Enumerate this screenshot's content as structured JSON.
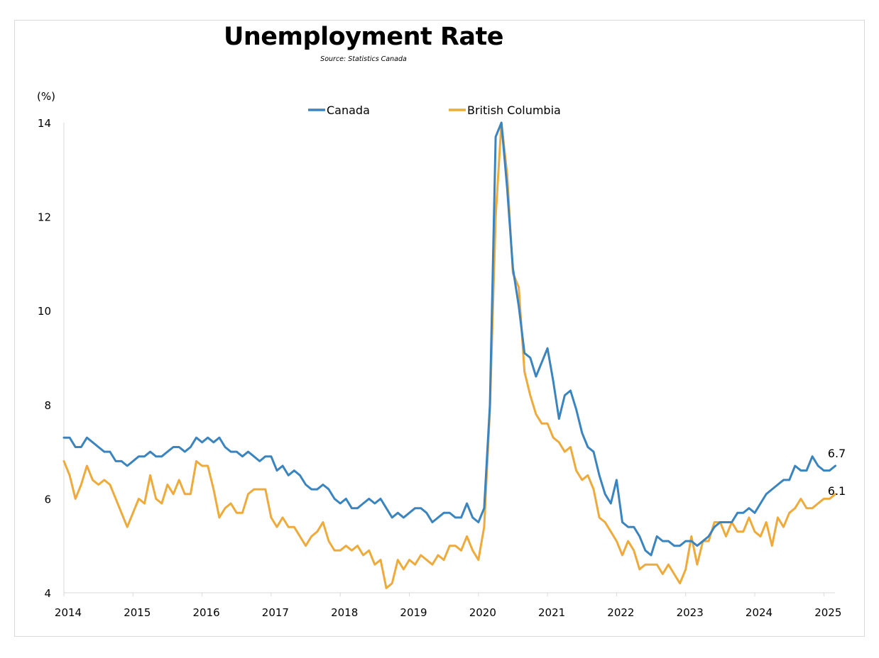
{
  "chart_data": {
    "type": "line",
    "title": "Unemployment Rate",
    "subtitle": "Source: Statistics Canada",
    "ylabel": "(%)",
    "xlabel": "",
    "ylim": [
      4,
      14
    ],
    "y_ticks": [
      "4",
      "6",
      "8",
      "10",
      "12",
      "14"
    ],
    "x_tick_labels": [
      "2014",
      "2015",
      "2016",
      "2017",
      "2018",
      "2019",
      "2020",
      "2021",
      "2022",
      "2023",
      "2024",
      "2025"
    ],
    "x_start": "2014-01",
    "grid": false,
    "legend_position": "top-center",
    "series": [
      {
        "name": "Canada",
        "color": "#3a84bf",
        "end_label": "6.7",
        "values": [
          7.3,
          7.3,
          7.1,
          7.1,
          7.3,
          7.2,
          7.1,
          7.0,
          7.0,
          6.8,
          6.8,
          6.7,
          6.8,
          6.9,
          6.9,
          7.0,
          6.9,
          6.9,
          7.0,
          7.1,
          7.1,
          7.0,
          7.1,
          7.3,
          7.2,
          7.3,
          7.2,
          7.3,
          7.1,
          7.0,
          7.0,
          6.9,
          7.0,
          6.9,
          6.8,
          6.9,
          6.9,
          6.6,
          6.7,
          6.5,
          6.6,
          6.5,
          6.3,
          6.2,
          6.2,
          6.3,
          6.2,
          6.0,
          5.9,
          6.0,
          5.8,
          5.8,
          5.9,
          6.0,
          5.9,
          6.0,
          5.8,
          5.6,
          5.7,
          5.6,
          5.7,
          5.8,
          5.8,
          5.7,
          5.5,
          5.6,
          5.7,
          5.7,
          5.6,
          5.6,
          5.9,
          5.6,
          5.5,
          5.8,
          8.0,
          13.7,
          14.1,
          12.6,
          10.9,
          10.1,
          9.1,
          9.0,
          8.6,
          8.9,
          9.2,
          8.5,
          7.7,
          8.2,
          8.3,
          7.9,
          7.4,
          7.1,
          7.0,
          6.5,
          6.1,
          5.9,
          6.4,
          5.5,
          5.4,
          5.4,
          5.2,
          4.9,
          4.8,
          5.2,
          5.1,
          5.1,
          5.0,
          5.0,
          5.1,
          5.1,
          5.0,
          5.1,
          5.2,
          5.4,
          5.5,
          5.5,
          5.5,
          5.7,
          5.7,
          5.8,
          5.7,
          5.9,
          6.1,
          6.2,
          6.3,
          6.4,
          6.4,
          6.7,
          6.6,
          6.6,
          6.9,
          6.7,
          6.6,
          6.6,
          6.7
        ]
      },
      {
        "name": "British Columbia",
        "color": "#eeaa3a",
        "end_label": "6.1",
        "values": [
          6.8,
          6.5,
          6.0,
          6.3,
          6.7,
          6.4,
          6.3,
          6.4,
          6.3,
          6.0,
          5.7,
          5.4,
          5.7,
          6.0,
          5.9,
          6.5,
          6.0,
          5.9,
          6.3,
          6.1,
          6.4,
          6.1,
          6.1,
          6.8,
          6.7,
          6.7,
          6.2,
          5.6,
          5.8,
          5.9,
          5.7,
          5.7,
          6.1,
          6.2,
          6.2,
          6.2,
          5.6,
          5.4,
          5.6,
          5.4,
          5.4,
          5.2,
          5.0,
          5.2,
          5.3,
          5.5,
          5.1,
          4.9,
          4.9,
          5.0,
          4.9,
          5.0,
          4.8,
          4.9,
          4.6,
          4.7,
          4.1,
          4.2,
          4.7,
          4.5,
          4.7,
          4.6,
          4.8,
          4.7,
          4.6,
          4.8,
          4.7,
          5.0,
          5.0,
          4.9,
          5.2,
          4.9,
          4.7,
          5.4,
          7.9,
          12.0,
          14.0,
          12.9,
          10.8,
          10.5,
          8.7,
          8.2,
          7.8,
          7.6,
          7.6,
          7.3,
          7.2,
          7.0,
          7.1,
          6.6,
          6.4,
          6.5,
          6.2,
          5.6,
          5.5,
          5.3,
          5.1,
          4.8,
          5.1,
          4.9,
          4.5,
          4.6,
          4.6,
          4.6,
          4.4,
          4.6,
          4.4,
          4.2,
          4.5,
          5.2,
          4.6,
          5.1,
          5.1,
          5.5,
          5.5,
          5.2,
          5.5,
          5.3,
          5.3,
          5.6,
          5.3,
          5.2,
          5.5,
          5.0,
          5.6,
          5.4,
          5.7,
          5.8,
          6.0,
          5.8,
          5.8,
          5.9,
          6.0,
          6.0,
          6.1
        ]
      }
    ]
  }
}
